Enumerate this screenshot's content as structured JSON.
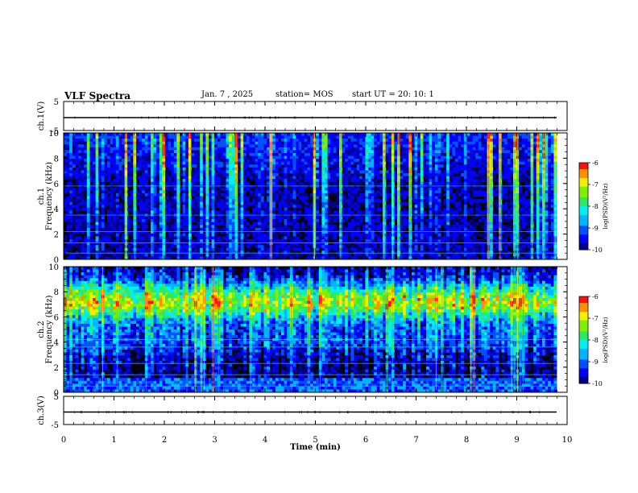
{
  "header": {
    "title": "VLF Spectra",
    "date": "Jan. 7 , 2025",
    "station": "station= MOS",
    "start": "start UT =  20: 10: 1"
  },
  "chart_data": [
    {
      "type": "line",
      "ylabel": "ch.1(V)",
      "ylim": [
        -5,
        5
      ],
      "yticks": [
        "5",
        "-5"
      ],
      "series": [
        {
          "values_level": 0
        }
      ]
    },
    {
      "type": "heatmap",
      "ylabel": "ch.1 Frequency (kHz)",
      "ylim": [
        0,
        10
      ],
      "yticks": [
        "0",
        "2",
        "4",
        "6",
        "8",
        "10"
      ],
      "xlim": [
        0,
        10
      ],
      "colorbar": {
        "label": "log(PSD)(V²/Hz)",
        "range": [
          -10,
          -6
        ],
        "ticks": [
          "-6",
          "-7",
          "-8",
          "-9",
          "-10"
        ]
      },
      "activity": "broadband vertical bursts, strongest above 6 kHz; horizontal lines near 0.5, 1.3, 2.2, 3.5, 5.8 kHz"
    },
    {
      "type": "heatmap",
      "ylabel": "ch.2 Frequency (kHz)",
      "ylim": [
        0,
        10
      ],
      "yticks": [
        "0",
        "2",
        "4",
        "6",
        "8",
        "10"
      ],
      "xlim": [
        0,
        10
      ],
      "colorbar": {
        "label": "log(PSD)(V²/Hz)",
        "range": [
          -10,
          -6
        ],
        "ticks": [
          "-6",
          "-7",
          "-8",
          "-9",
          "-10"
        ]
      },
      "activity": "intense band 5–9 kHz (red/yellow), moderate 3–5 kHz, low below 2 kHz with horizontal lines"
    },
    {
      "type": "line",
      "ylabel": "ch.3(V)",
      "ylim": [
        -5,
        5
      ],
      "yticks": [
        "5",
        "-5"
      ],
      "series": [
        {
          "values_level": 0
        }
      ]
    }
  ],
  "xaxis": {
    "label": "Time (min)",
    "range": [
      0,
      10
    ],
    "ticks": [
      "0",
      "1",
      "2",
      "3",
      "4",
      "5",
      "6",
      "7",
      "8",
      "9",
      "10"
    ]
  },
  "colors": {
    "background": "#000000",
    "low": "#0000a0",
    "mid": "#00d0ff",
    "green": "#40e040",
    "high": "#ff2020"
  }
}
